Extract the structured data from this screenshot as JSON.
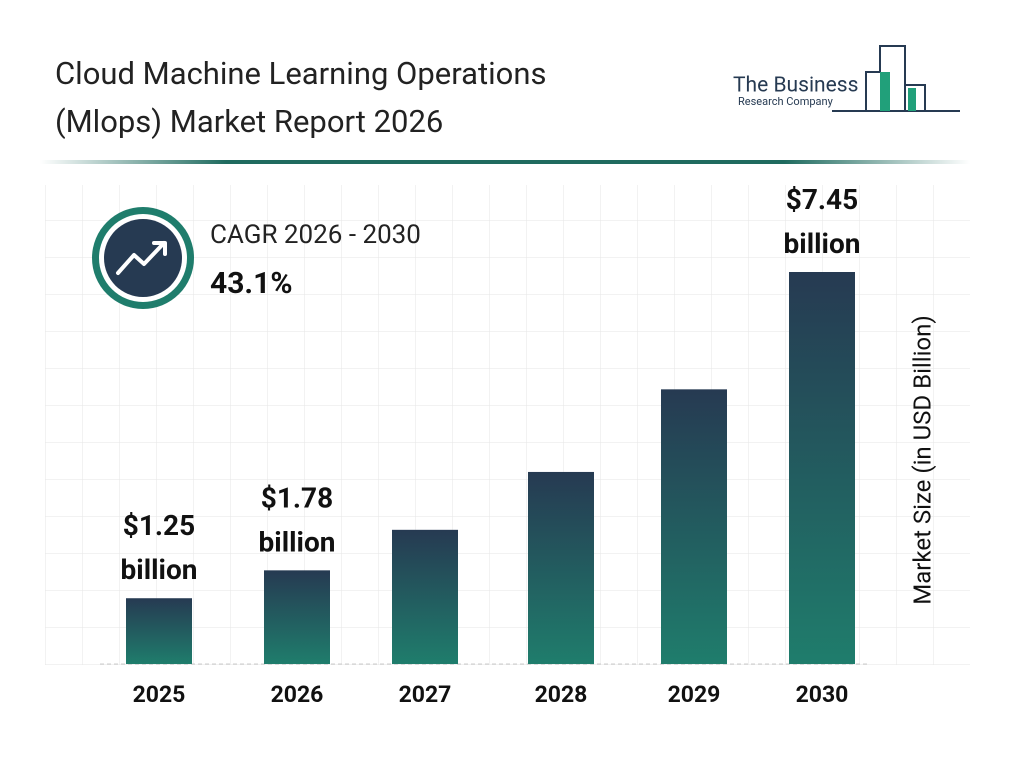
{
  "chart_data": {
    "type": "bar",
    "title": "Cloud Machine Learning Operations (Mlops) Market Report 2026",
    "brand": [
      "The Business",
      "Research Company"
    ],
    "cagr_label": "CAGR 2026 - 2030",
    "cagr_value": "43.1%",
    "y_label": "Market Size (in USD Billion)",
    "categories": [
      "2025",
      "2026",
      "2027",
      "2028",
      "2029",
      "2030"
    ],
    "values": [
      1.25,
      1.78,
      2.55,
      3.65,
      5.22,
      7.45
    ],
    "value_labels": [
      "$1.25 billion",
      "$1.78 billion",
      null,
      null,
      null,
      "$7.45 billion"
    ],
    "colors": [
      "#263a52",
      "#1f7d6c"
    ]
  }
}
